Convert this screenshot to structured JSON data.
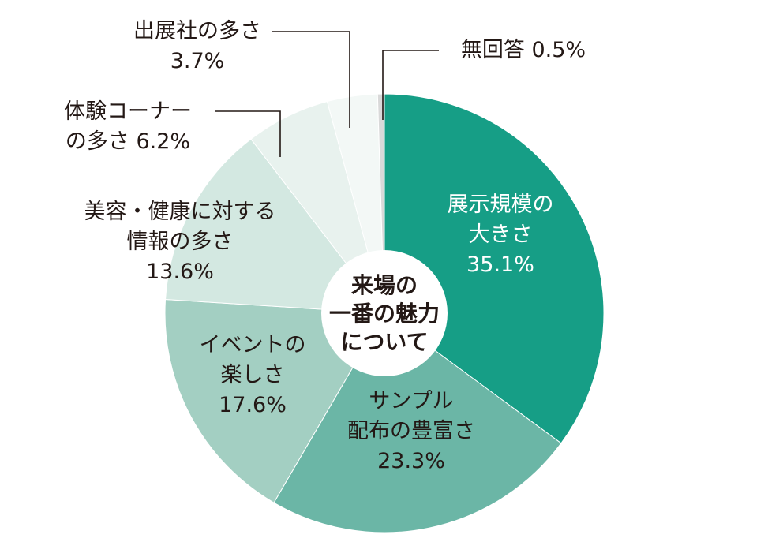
{
  "chart_data": {
    "type": "pie",
    "style": "donut",
    "center_text": [
      "来場の",
      "一番の魅力",
      "について"
    ],
    "slices": [
      {
        "label": [
          "展示規模の",
          "大きさ"
        ],
        "value": 35.1,
        "value_text": "35.1%",
        "color": "#169e86",
        "text_color": "#ffffff"
      },
      {
        "label": [
          "サンプル",
          "配布の豊富さ"
        ],
        "value": 23.3,
        "value_text": "23.3%",
        "color": "#6bb6a6",
        "text_color": "#231815"
      },
      {
        "label": [
          "イベントの",
          "楽しさ"
        ],
        "value": 17.6,
        "value_text": "17.6%",
        "color": "#a3cfc2",
        "text_color": "#231815"
      },
      {
        "label": [
          "美容・健康に対する",
          "情報の多さ"
        ],
        "value": 13.6,
        "value_text": "13.6%",
        "color": "#d3e8e1",
        "text_color": "#231815"
      },
      {
        "label": [
          "体験コーナー",
          "の多さ 6.2%"
        ],
        "value": 6.2,
        "value_text": "",
        "color": "#e8f2ee",
        "text_color": "#231815"
      },
      {
        "label": [
          "出展社の多さ"
        ],
        "value": 3.7,
        "value_text": "3.7%",
        "color": "#f3f8f6",
        "text_color": "#231815"
      },
      {
        "label": [
          "無回答 0.5%"
        ],
        "value": 0.5,
        "value_text": "",
        "color": "#d9d9d9",
        "text_color": "#231815"
      }
    ]
  }
}
